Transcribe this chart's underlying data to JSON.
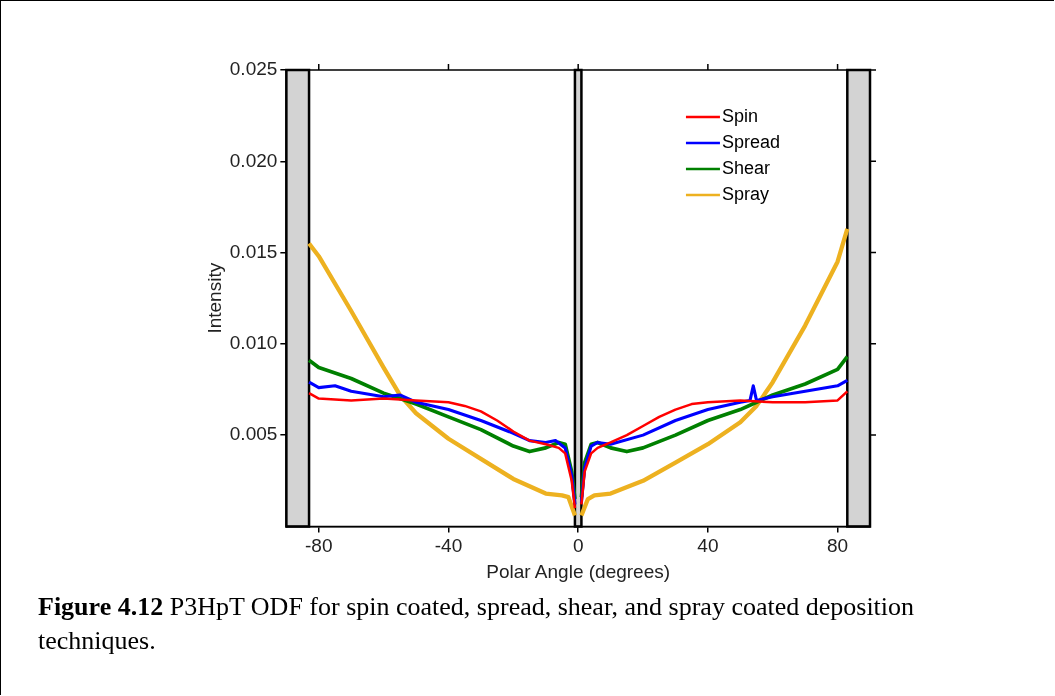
{
  "chart_data": {
    "type": "line",
    "xlabel": "Polar Angle (degrees)",
    "ylabel": "Intensity",
    "annotations": [
      "Figure 4.12 P3HpT ODF for spin coated, spread, shear, and spray coated deposition techniques."
    ],
    "xlim": [
      -90,
      90
    ],
    "xticks": [
      -80,
      -40,
      0,
      40,
      80
    ],
    "ylim": [
      0,
      0.025
    ],
    "yticks": [
      {
        "value": 0.005,
        "label": "0.005"
      },
      {
        "value": 0.01,
        "label": "0.010"
      },
      {
        "value": 0.015,
        "label": "0.015"
      },
      {
        "value": 0.02,
        "label": "0.020"
      },
      {
        "value": 0.025,
        "label": "0.025"
      }
    ],
    "grid": false,
    "legend": "top right",
    "marker": "none",
    "line_style": "solid",
    "bands": [
      {
        "axis": "x",
        "from": -90,
        "to": -83,
        "color": "#d3d3d3"
      },
      {
        "axis": "x",
        "from": -1,
        "to": 1,
        "color": "#d3d3d3"
      },
      {
        "axis": "x",
        "from": 83,
        "to": 90,
        "color": "#d3d3d3"
      }
    ],
    "series": [
      {
        "name": "Spin",
        "color": "#ff0000",
        "x": [
          -83,
          -80,
          -70,
          -60,
          -50,
          -40,
          -35,
          -30,
          -25,
          -20,
          -15,
          -10,
          -6,
          -4,
          -2,
          -1,
          0,
          1,
          2,
          4,
          6,
          10,
          15,
          20,
          25,
          30,
          35,
          40,
          50,
          60,
          70,
          80,
          83
        ],
        "values": [
          0.0073,
          0.007,
          0.0069,
          0.007,
          0.0069,
          0.0068,
          0.0066,
          0.0063,
          0.0058,
          0.0052,
          0.0047,
          0.0045,
          0.0043,
          0.004,
          0.0025,
          0.001,
          null,
          0.0012,
          0.003,
          0.004,
          0.0043,
          0.0046,
          0.005,
          0.0055,
          0.006,
          0.0064,
          0.0067,
          0.0068,
          0.0069,
          0.0068,
          0.0068,
          0.0069,
          0.0074
        ]
      },
      {
        "name": "Spread",
        "color": "#0000ff",
        "x": [
          -83,
          -80,
          -75,
          -70,
          -60,
          -55,
          -50,
          -40,
          -30,
          -20,
          -15,
          -10,
          -7,
          -4,
          -2,
          -1,
          0,
          1,
          2,
          4,
          6,
          10,
          20,
          30,
          40,
          50,
          53,
          54,
          55,
          60,
          70,
          80,
          83
        ],
        "values": [
          0.0079,
          0.0076,
          0.0077,
          0.0074,
          0.0071,
          0.0072,
          0.0068,
          0.0064,
          0.0058,
          0.0051,
          0.0047,
          0.0046,
          0.0047,
          0.0043,
          0.0028,
          0.0012,
          null,
          0.0013,
          0.0032,
          0.0044,
          0.0046,
          0.0045,
          0.005,
          0.0058,
          0.0064,
          0.0068,
          0.0069,
          0.0077,
          0.0069,
          0.0071,
          0.0074,
          0.0077,
          0.008
        ]
      },
      {
        "name": "Shear",
        "color": "#008000",
        "x": [
          -83,
          -80,
          -70,
          -60,
          -55,
          -50,
          -40,
          -30,
          -20,
          -15,
          -10,
          -6,
          -4,
          -2,
          -1,
          0,
          1,
          2,
          4,
          6,
          10,
          15,
          20,
          30,
          40,
          50,
          55,
          60,
          70,
          80,
          83
        ],
        "values": [
          0.0091,
          0.0087,
          0.0081,
          0.0073,
          0.007,
          0.0067,
          0.006,
          0.0053,
          0.0044,
          0.0041,
          0.0043,
          0.0046,
          0.0045,
          0.003,
          0.0015,
          null,
          0.0016,
          0.0035,
          0.0045,
          0.0046,
          0.0043,
          0.0041,
          0.0043,
          0.005,
          0.0058,
          0.0064,
          0.0068,
          0.0072,
          0.0078,
          0.0086,
          0.0093
        ]
      },
      {
        "name": "Spray",
        "color": "#edb120",
        "x": [
          -83,
          -80,
          -70,
          -60,
          -55,
          -50,
          -40,
          -30,
          -20,
          -10,
          -5,
          -3,
          -1,
          0,
          1,
          3,
          5,
          10,
          20,
          30,
          40,
          50,
          55,
          60,
          70,
          80,
          83
        ],
        "values": [
          0.0155,
          0.0148,
          0.0118,
          0.0087,
          0.0072,
          0.0062,
          0.0048,
          0.0037,
          0.0026,
          0.0018,
          0.0017,
          0.0016,
          0.0006,
          null,
          0.0006,
          0.0015,
          0.0017,
          0.0018,
          0.0025,
          0.0035,
          0.0045,
          0.0057,
          0.0066,
          0.0079,
          0.011,
          0.0145,
          0.0163
        ]
      }
    ]
  }
}
